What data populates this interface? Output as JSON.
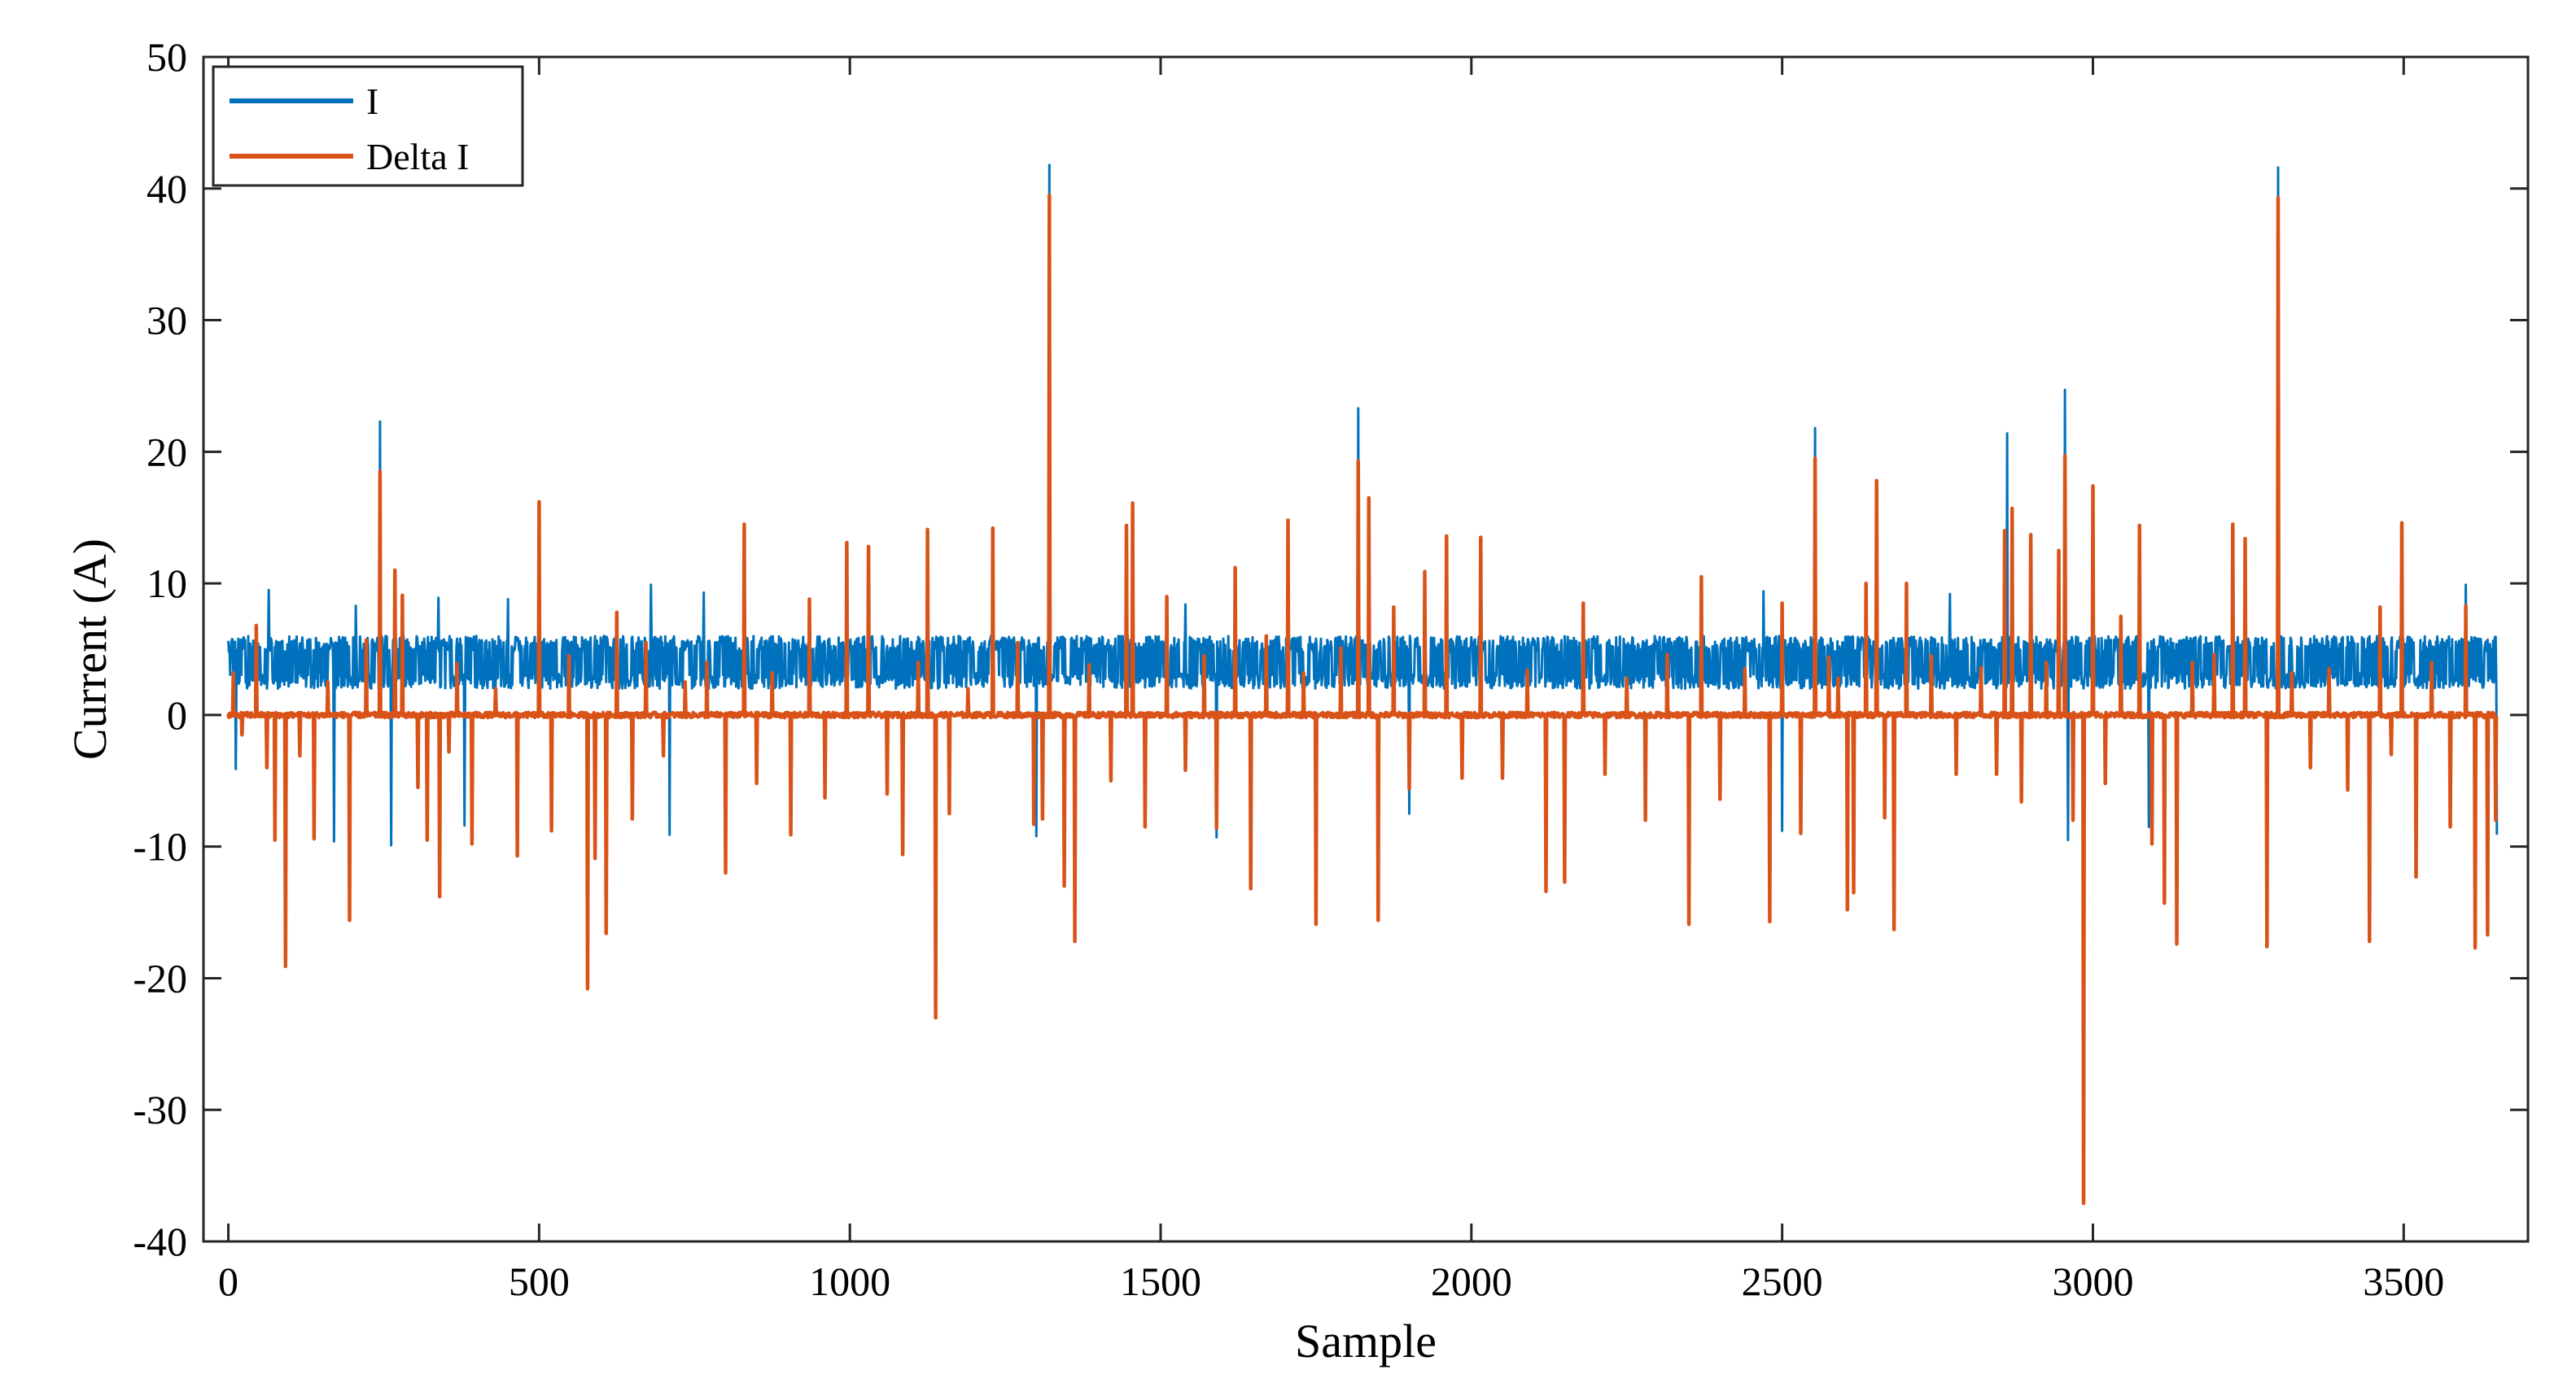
{
  "chart_data": {
    "type": "line",
    "xlabel": "Sample",
    "ylabel": "Current (A)",
    "xlim": [
      -40,
      3700
    ],
    "ylim": [
      -40,
      50
    ],
    "xticks": [
      0,
      500,
      1000,
      1500,
      2000,
      2500,
      3000,
      3500
    ],
    "yticks": [
      -40,
      -30,
      -20,
      -10,
      0,
      10,
      20,
      30,
      40,
      50
    ],
    "xtick_labels": [
      "0",
      "500",
      "1000",
      "1500",
      "2000",
      "2500",
      "3000",
      "3500"
    ],
    "ytick_labels": [
      "-40",
      "-30",
      "-20",
      "-10",
      "0",
      "10",
      "20",
      "30",
      "40",
      "50"
    ],
    "grid": false,
    "legend_position": "top-left",
    "x_extent": [
      0,
      3650
    ],
    "series": [
      {
        "name": "I",
        "color": "#0072BD",
        "description_values": {
          "baseline_band": [
            2,
            6
          ],
          "note_free": true
        },
        "spikes": [
          {
            "x": 244,
            "y": 22.3
          },
          {
            "x": 1321,
            "y": 41.8
          },
          {
            "x": 1818,
            "y": 23.3
          },
          {
            "x": 2553,
            "y": 21.8
          },
          {
            "x": 2862,
            "y": 21.4
          },
          {
            "x": 2955,
            "y": 24.7
          },
          {
            "x": 3298,
            "y": 41.6
          },
          {
            "x": 65,
            "y": 9.5
          },
          {
            "x": 205,
            "y": 8.3
          },
          {
            "x": 338,
            "y": 8.9
          },
          {
            "x": 450,
            "y": 8.8
          },
          {
            "x": 680,
            "y": 9.9
          },
          {
            "x": 765,
            "y": 9.3
          },
          {
            "x": 1540,
            "y": 8.4
          },
          {
            "x": 2470,
            "y": 9.4
          },
          {
            "x": 2770,
            "y": 9.2
          },
          {
            "x": 3600,
            "y": 9.9
          },
          {
            "x": 12,
            "y": -4.1
          },
          {
            "x": 170,
            "y": -9.6
          },
          {
            "x": 262,
            "y": -9.9
          },
          {
            "x": 380,
            "y": -8.4
          },
          {
            "x": 710,
            "y": -9.1
          },
          {
            "x": 1300,
            "y": -9.2
          },
          {
            "x": 1590,
            "y": -9.3
          },
          {
            "x": 1900,
            "y": -7.5
          },
          {
            "x": 2500,
            "y": -8.8
          },
          {
            "x": 2960,
            "y": -9.5
          },
          {
            "x": 3090,
            "y": -8.5
          },
          {
            "x": 3650,
            "y": -9.1
          }
        ]
      },
      {
        "name": "Delta I",
        "color": "#D95319",
        "spikes": [
          {
            "x": 8,
            "y": 3.2
          },
          {
            "x": 22,
            "y": -1.5
          },
          {
            "x": 45,
            "y": 6.8
          },
          {
            "x": 62,
            "y": -4.0
          },
          {
            "x": 75,
            "y": -9.5
          },
          {
            "x": 92,
            "y": -19.1
          },
          {
            "x": 115,
            "y": -3.1
          },
          {
            "x": 138,
            "y": -9.4
          },
          {
            "x": 160,
            "y": 2.5
          },
          {
            "x": 195,
            "y": -15.6
          },
          {
            "x": 222,
            "y": 5.7
          },
          {
            "x": 244,
            "y": 18.5
          },
          {
            "x": 268,
            "y": 11.0
          },
          {
            "x": 280,
            "y": 9.1
          },
          {
            "x": 305,
            "y": -5.5
          },
          {
            "x": 320,
            "y": -9.5
          },
          {
            "x": 340,
            "y": -13.8
          },
          {
            "x": 355,
            "y": -2.8
          },
          {
            "x": 368,
            "y": 3.9
          },
          {
            "x": 392,
            "y": -9.8
          },
          {
            "x": 430,
            "y": 2.0
          },
          {
            "x": 465,
            "y": -10.7
          },
          {
            "x": 500,
            "y": 16.2
          },
          {
            "x": 520,
            "y": -8.8
          },
          {
            "x": 548,
            "y": 4.5
          },
          {
            "x": 578,
            "y": -20.8
          },
          {
            "x": 590,
            "y": -10.9
          },
          {
            "x": 608,
            "y": -16.6
          },
          {
            "x": 625,
            "y": 7.8
          },
          {
            "x": 650,
            "y": -7.9
          },
          {
            "x": 672,
            "y": 5.5
          },
          {
            "x": 700,
            "y": -3.1
          },
          {
            "x": 735,
            "y": 2.5
          },
          {
            "x": 770,
            "y": 4.0
          },
          {
            "x": 800,
            "y": -12.0
          },
          {
            "x": 830,
            "y": 14.5
          },
          {
            "x": 850,
            "y": -5.2
          },
          {
            "x": 875,
            "y": 3.2
          },
          {
            "x": 905,
            "y": -9.1
          },
          {
            "x": 935,
            "y": 8.8
          },
          {
            "x": 960,
            "y": -6.3
          },
          {
            "x": 995,
            "y": 13.1
          },
          {
            "x": 1030,
            "y": 12.8
          },
          {
            "x": 1060,
            "y": -6.0
          },
          {
            "x": 1085,
            "y": -10.6
          },
          {
            "x": 1110,
            "y": 4.0
          },
          {
            "x": 1125,
            "y": 14.1
          },
          {
            "x": 1138,
            "y": -23.0
          },
          {
            "x": 1160,
            "y": -7.5
          },
          {
            "x": 1190,
            "y": 2.0
          },
          {
            "x": 1230,
            "y": 14.2
          },
          {
            "x": 1270,
            "y": 5.5
          },
          {
            "x": 1296,
            "y": -8.3
          },
          {
            "x": 1310,
            "y": -7.9
          },
          {
            "x": 1321,
            "y": 39.5
          },
          {
            "x": 1345,
            "y": -13.0
          },
          {
            "x": 1362,
            "y": -17.2
          },
          {
            "x": 1385,
            "y": 3.8
          },
          {
            "x": 1420,
            "y": -5.0
          },
          {
            "x": 1445,
            "y": 14.4
          },
          {
            "x": 1455,
            "y": 16.1
          },
          {
            "x": 1475,
            "y": -8.5
          },
          {
            "x": 1510,
            "y": 9.0
          },
          {
            "x": 1540,
            "y": -4.2
          },
          {
            "x": 1570,
            "y": 4.5
          },
          {
            "x": 1590,
            "y": -8.6
          },
          {
            "x": 1620,
            "y": 11.2
          },
          {
            "x": 1645,
            "y": -13.2
          },
          {
            "x": 1670,
            "y": 6.0
          },
          {
            "x": 1705,
            "y": 14.8
          },
          {
            "x": 1730,
            "y": 3.2
          },
          {
            "x": 1750,
            "y": -15.9
          },
          {
            "x": 1790,
            "y": 5.1
          },
          {
            "x": 1818,
            "y": 19.3
          },
          {
            "x": 1835,
            "y": 16.5
          },
          {
            "x": 1850,
            "y": -15.6
          },
          {
            "x": 1875,
            "y": 8.2
          },
          {
            "x": 1900,
            "y": -5.6
          },
          {
            "x": 1925,
            "y": 10.9
          },
          {
            "x": 1960,
            "y": 13.6
          },
          {
            "x": 1985,
            "y": -4.8
          },
          {
            "x": 2015,
            "y": 13.5
          },
          {
            "x": 2050,
            "y": -4.8
          },
          {
            "x": 2090,
            "y": 3.4
          },
          {
            "x": 2120,
            "y": -13.4
          },
          {
            "x": 2150,
            "y": -12.7
          },
          {
            "x": 2180,
            "y": 8.5
          },
          {
            "x": 2215,
            "y": -4.5
          },
          {
            "x": 2250,
            "y": 2.8
          },
          {
            "x": 2280,
            "y": -8.0
          },
          {
            "x": 2315,
            "y": 4.6
          },
          {
            "x": 2350,
            "y": -15.9
          },
          {
            "x": 2370,
            "y": 10.5
          },
          {
            "x": 2400,
            "y": -6.4
          },
          {
            "x": 2440,
            "y": 3.5
          },
          {
            "x": 2480,
            "y": -15.7
          },
          {
            "x": 2500,
            "y": 8.5
          },
          {
            "x": 2530,
            "y": -9.0
          },
          {
            "x": 2553,
            "y": 19.5
          },
          {
            "x": 2575,
            "y": 4.4
          },
          {
            "x": 2590,
            "y": 2.8
          },
          {
            "x": 2605,
            "y": -14.8
          },
          {
            "x": 2615,
            "y": -13.5
          },
          {
            "x": 2635,
            "y": 10.0
          },
          {
            "x": 2652,
            "y": 17.8
          },
          {
            "x": 2665,
            "y": -7.8
          },
          {
            "x": 2680,
            "y": -16.3
          },
          {
            "x": 2700,
            "y": 10.0
          },
          {
            "x": 2740,
            "y": 4.5
          },
          {
            "x": 2780,
            "y": -4.5
          },
          {
            "x": 2820,
            "y": 3.6
          },
          {
            "x": 2845,
            "y": -4.5
          },
          {
            "x": 2858,
            "y": 14.0
          },
          {
            "x": 2870,
            "y": 15.7
          },
          {
            "x": 2885,
            "y": -6.6
          },
          {
            "x": 2900,
            "y": 13.7
          },
          {
            "x": 2925,
            "y": 4.0
          },
          {
            "x": 2945,
            "y": 12.5
          },
          {
            "x": 2955,
            "y": 19.7
          },
          {
            "x": 2968,
            "y": -8.0
          },
          {
            "x": 2985,
            "y": -37.1
          },
          {
            "x": 3000,
            "y": 17.4
          },
          {
            "x": 3020,
            "y": -5.2
          },
          {
            "x": 3045,
            "y": 7.5
          },
          {
            "x": 3075,
            "y": 14.4
          },
          {
            "x": 3095,
            "y": -9.8
          },
          {
            "x": 3115,
            "y": -14.3
          },
          {
            "x": 3135,
            "y": -17.4
          },
          {
            "x": 3160,
            "y": 4.0
          },
          {
            "x": 3195,
            "y": 4.6
          },
          {
            "x": 3225,
            "y": 14.5
          },
          {
            "x": 3245,
            "y": 13.4
          },
          {
            "x": 3280,
            "y": -17.6
          },
          {
            "x": 3298,
            "y": 39.3
          },
          {
            "x": 3320,
            "y": 3.2
          },
          {
            "x": 3350,
            "y": -4.0
          },
          {
            "x": 3380,
            "y": 3.5
          },
          {
            "x": 3410,
            "y": -5.7
          },
          {
            "x": 3445,
            "y": -17.2
          },
          {
            "x": 3462,
            "y": 8.2
          },
          {
            "x": 3480,
            "y": -3.0
          },
          {
            "x": 3497,
            "y": 14.6
          },
          {
            "x": 3520,
            "y": -12.3
          },
          {
            "x": 3545,
            "y": 4.0
          },
          {
            "x": 3575,
            "y": -8.5
          },
          {
            "x": 3600,
            "y": 8.3
          },
          {
            "x": 3615,
            "y": -17.7
          },
          {
            "x": 3635,
            "y": -16.7
          },
          {
            "x": 3648,
            "y": -8.0
          }
        ]
      }
    ]
  }
}
